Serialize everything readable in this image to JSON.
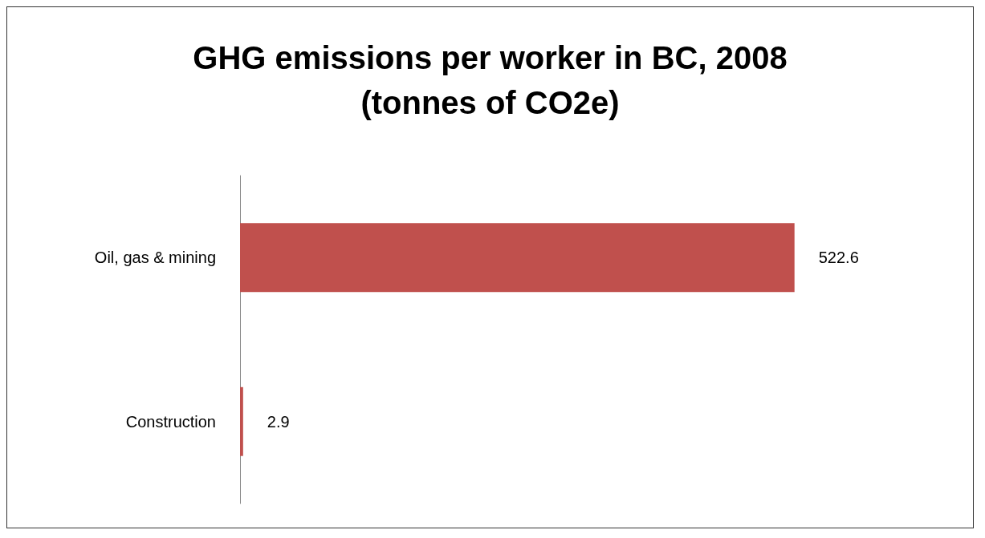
{
  "chart_data": {
    "type": "bar",
    "orientation": "horizontal",
    "title": "GHG emissions per worker in BC, 2008\n(tonnes of CO2e)",
    "categories": [
      "Oil, gas & mining",
      "Construction"
    ],
    "values": [
      522.6,
      2.9
    ],
    "color": "#c0504d",
    "data_labels": true
  }
}
